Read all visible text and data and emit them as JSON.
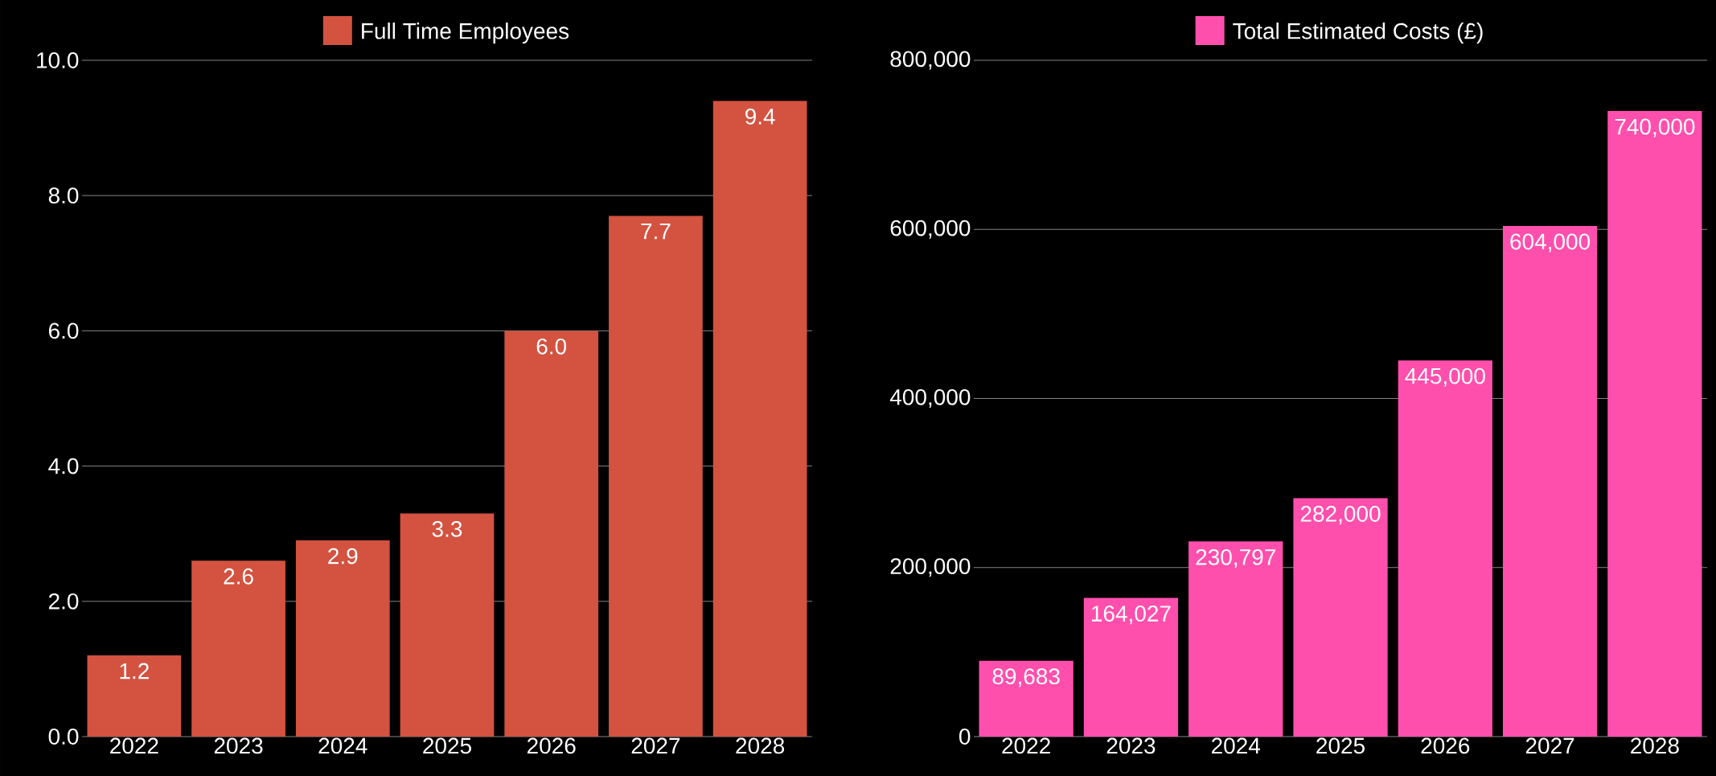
{
  "chart_data": [
    {
      "type": "bar",
      "categories": [
        "2022",
        "2023",
        "2024",
        "2025",
        "2026",
        "2027",
        "2028"
      ],
      "series": [
        {
          "name": "Full Time Employees",
          "color": "#d35240",
          "values": [
            1.2,
            2.6,
            2.9,
            3.3,
            6.0,
            7.7,
            9.4
          ],
          "value_labels": [
            "1.2",
            "2.6",
            "2.9",
            "3.3",
            "6.0",
            "7.7",
            "9.4"
          ]
        }
      ],
      "ylim": [
        0,
        10
      ],
      "yticks": [
        {
          "value": 0,
          "label": "0.0"
        },
        {
          "value": 2,
          "label": "2.0"
        },
        {
          "value": 4,
          "label": "4.0"
        },
        {
          "value": 6,
          "label": "6.0"
        },
        {
          "value": 8,
          "label": "8.0"
        },
        {
          "value": 10,
          "label": "10.0"
        }
      ],
      "grid": "y",
      "legend": "top"
    },
    {
      "type": "bar",
      "categories": [
        "2022",
        "2023",
        "2024",
        "2025",
        "2026",
        "2027",
        "2028"
      ],
      "series": [
        {
          "name": "Total Estimated Costs (£)",
          "color": "#ff4fad",
          "values": [
            89683,
            164027,
            230797,
            282000,
            445000,
            604000,
            740000
          ],
          "value_labels": [
            "89,683",
            "164,027",
            "230,797",
            "282,000",
            "445,000",
            "604,000",
            "740,000"
          ]
        }
      ],
      "ylim": [
        0,
        800000
      ],
      "yticks": [
        0,
        {
          "value": 200000,
          "label": "200,000"
        },
        {
          "value": 400000,
          "label": "400,000"
        },
        {
          "value": 600000,
          "label": "600,000"
        },
        {
          "value": 800000,
          "label": "800,000"
        }
      ],
      "grid": "y",
      "legend": "top"
    }
  ]
}
